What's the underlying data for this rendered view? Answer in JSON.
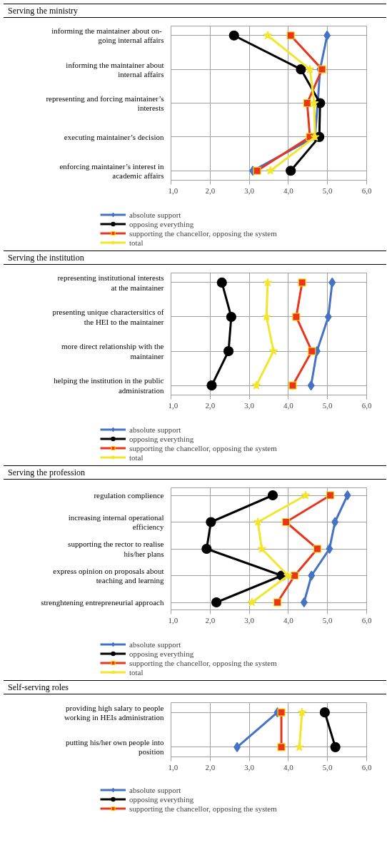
{
  "chart_data": [
    {
      "type": "line",
      "title": "Serving the ministry",
      "orientation": "horizontal",
      "categories": [
        "informing the maintainer about  on-going internal affairs",
        "informing the maintainer about internal affairs",
        "representing and forcing maintainer’s interests",
        "executing maintainer’s decision",
        "enforcing maintainer’s interest in academic affairs"
      ],
      "series": [
        {
          "name": "absolute support",
          "color": "#4472c4",
          "marker": "diamond",
          "values": [
            4.99,
            4.81,
            4.75,
            4.68,
            3.09
          ]
        },
        {
          "name": "opposing everything",
          "color": "#000000",
          "marker": "circle",
          "values": [
            2.61,
            4.32,
            4.81,
            4.79,
            4.06
          ]
        },
        {
          "name": "supporting the chancellor, opposing the system",
          "color": "#e8361e",
          "marker": "square",
          "values": [
            4.06,
            4.86,
            4.48,
            4.55,
            3.2
          ]
        },
        {
          "name": "total",
          "color": "#f2e52a",
          "marker": "star",
          "values": [
            3.47,
            4.55,
            4.66,
            4.68,
            3.54
          ]
        }
      ],
      "xlim": [
        1,
        6
      ],
      "xticks": [
        {
          "value": 1,
          "label": "1,0"
        },
        {
          "value": 2,
          "label": "2,0"
        },
        {
          "value": 3,
          "label": "3,0"
        },
        {
          "value": 4,
          "label": "4,0"
        },
        {
          "value": 5,
          "label": "5,0"
        },
        {
          "value": 6,
          "label": "6,0"
        }
      ],
      "grid": true,
      "legend": "bottom"
    },
    {
      "type": "line",
      "title": "Serving the institution",
      "orientation": "horizontal",
      "categories": [
        "representing institutional interests at the maintainer",
        "presenting unique charactersitics of the HEI to the maintainer",
        "more direct relationship with the maintainer",
        "helping the institution in the public administration"
      ],
      "series": [
        {
          "name": "absolute support",
          "color": "#4472c4",
          "marker": "diamond",
          "values": [
            5.12,
            5.02,
            4.73,
            4.58
          ]
        },
        {
          "name": "opposing everything",
          "color": "#000000",
          "marker": "circle",
          "values": [
            2.3,
            2.54,
            2.47,
            2.04
          ]
        },
        {
          "name": "supporting the chancellor, opposing the system",
          "color": "#e8361e",
          "marker": "square",
          "values": [
            4.35,
            4.2,
            4.6,
            4.11
          ]
        },
        {
          "name": "total",
          "color": "#f2e52a",
          "marker": "star",
          "values": [
            3.47,
            3.44,
            3.62,
            3.18
          ]
        }
      ],
      "xlim": [
        1,
        6
      ],
      "xticks": [
        {
          "value": 1,
          "label": "1,0"
        },
        {
          "value": 2,
          "label": "2,0"
        },
        {
          "value": 3,
          "label": "3,0"
        },
        {
          "value": 4,
          "label": "4,0"
        },
        {
          "value": 5,
          "label": "5,0"
        },
        {
          "value": 6,
          "label": "6,0"
        }
      ],
      "grid": true,
      "legend": "bottom"
    },
    {
      "type": "line",
      "title": "Serving the profession",
      "orientation": "horizontal",
      "categories": [
        "regulation complience",
        "increasing internal operational efficiency",
        "supporting the rector to realise his/her plans",
        "express opinion on proposals about teaching and learning",
        "strenghtening entrepreneurial approach"
      ],
      "series": [
        {
          "name": "absolute support",
          "color": "#4472c4",
          "marker": "diamond",
          "values": [
            5.51,
            5.19,
            5.05,
            4.59,
            4.4
          ]
        },
        {
          "name": "opposing everything",
          "color": "#000000",
          "marker": "circle",
          "values": [
            3.6,
            2.02,
            1.91,
            3.83,
            2.16
          ]
        },
        {
          "name": "supporting the chancellor, opposing the system",
          "color": "#e8361e",
          "marker": "square",
          "values": [
            5.07,
            3.94,
            4.74,
            4.16,
            3.72
          ]
        },
        {
          "name": "total",
          "color": "#f2e52a",
          "marker": "star",
          "values": [
            4.44,
            3.22,
            3.32,
            3.99,
            3.07
          ]
        }
      ],
      "xlim": [
        1,
        6
      ],
      "xticks": [
        {
          "value": 1,
          "label": "1,0"
        },
        {
          "value": 2,
          "label": "2,0"
        },
        {
          "value": 3,
          "label": "3,0"
        },
        {
          "value": 4,
          "label": "4,0"
        },
        {
          "value": 5,
          "label": "5,0"
        },
        {
          "value": 6,
          "label": "6,0"
        }
      ],
      "grid": true,
      "legend": "bottom"
    },
    {
      "type": "line",
      "title": "Self-serving roles",
      "orientation": "horizontal",
      "categories": [
        "providing high salary to people working in HEIs administration",
        "putting his/her own people into position"
      ],
      "series": [
        {
          "name": "absolute support",
          "color": "#4472c4",
          "marker": "diamond",
          "values": [
            3.72,
            2.69
          ]
        },
        {
          "name": "opposing everything",
          "color": "#000000",
          "marker": "circle",
          "values": [
            4.93,
            5.2
          ]
        },
        {
          "name": "supporting the chancellor, opposing the system",
          "color": "#e8361e",
          "marker": "square",
          "values": [
            3.82,
            3.82
          ]
        },
        {
          "color": "#f2e52a",
          "marker": "star",
          "values": [
            4.35,
            4.28
          ]
        }
      ],
      "xlim": [
        1,
        6
      ],
      "xticks": [
        {
          "value": 1,
          "label": "1,0"
        },
        {
          "value": 2,
          "label": "2,0"
        },
        {
          "value": 3,
          "label": "3,0"
        },
        {
          "value": 4,
          "label": "4,0"
        },
        {
          "value": 5,
          "label": "5,0"
        },
        {
          "value": 6,
          "label": "6,0"
        }
      ],
      "grid": true,
      "legend": "bottom"
    }
  ]
}
